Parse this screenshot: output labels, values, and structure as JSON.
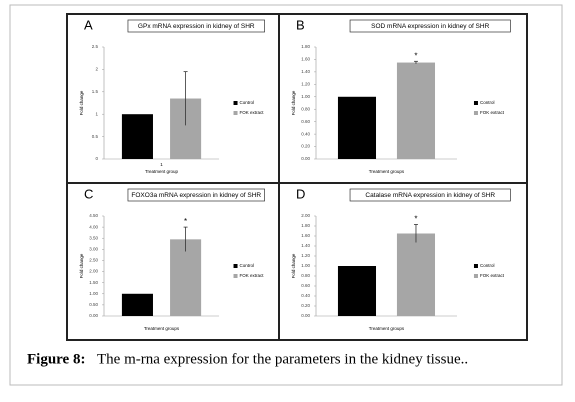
{
  "chart_data": [
    {
      "type": "bar",
      "panel_label": "A",
      "title": "GPx mRNA expression in kidney of SHR",
      "y_label": "Fold change",
      "x_label": "Treatment group",
      "categories": [
        "1"
      ],
      "series": [
        {
          "name": "Control",
          "color": "#000000",
          "values": [
            1.0
          ]
        },
        {
          "name": "FOK extract",
          "color": "#a6a6a6",
          "values": [
            1.35
          ],
          "errors": [
            0.6
          ]
        }
      ],
      "ylim": [
        0,
        2.5
      ],
      "yticks": [
        0,
        0.5,
        1,
        1.5,
        2,
        2.5
      ]
    },
    {
      "type": "bar",
      "panel_label": "B",
      "title": "SOD mRNA expression in kidney of SHR",
      "y_label": "Fold change",
      "x_label": "Treatment groups",
      "annotation": "*",
      "categories": [
        null
      ],
      "series": [
        {
          "name": "Control",
          "color": "#000000",
          "values": [
            1.0
          ]
        },
        {
          "name": "FOK extract",
          "color": "#a6a6a6",
          "values": [
            1.55
          ],
          "errors": [
            0.02
          ]
        }
      ],
      "ylim": [
        0,
        1.8
      ],
      "yticks": [
        {
          "value": 0,
          "label": "0.00"
        },
        {
          "value": 0.2,
          "label": "0.20"
        },
        {
          "value": 0.4,
          "label": "0.40"
        },
        {
          "value": 0.6,
          "label": "0.60"
        },
        {
          "value": 0.8,
          "label": "0.80"
        },
        {
          "value": 1,
          "label": "1.00"
        },
        {
          "value": 1.2,
          "label": "1.20"
        },
        {
          "value": 1.4,
          "label": "1.40"
        },
        {
          "value": 1.6,
          "label": "1.60"
        },
        {
          "value": 1.8,
          "label": "1.80"
        }
      ]
    },
    {
      "type": "bar",
      "panel_label": "C",
      "title": "FOXO3a mRNA expression in kidney of SHR",
      "y_label": "Fold change",
      "x_label": "Treatment groups",
      "annotation": "*",
      "categories": [
        null
      ],
      "series": [
        {
          "name": "Control",
          "color": "#000000",
          "values": [
            1.0
          ]
        },
        {
          "name": "FOK extract",
          "color": "#a6a6a6",
          "values": [
            3.45
          ],
          "errors": [
            0.55
          ]
        }
      ],
      "ylim": [
        0,
        4.5
      ],
      "yticks": [
        {
          "value": 0,
          "label": "0.00"
        },
        {
          "value": 0.5,
          "label": "0.50"
        },
        {
          "value": 1,
          "label": "1.00"
        },
        {
          "value": 1.5,
          "label": "1.50"
        },
        {
          "value": 2,
          "label": "2.00"
        },
        {
          "value": 2.5,
          "label": "2.50"
        },
        {
          "value": 3,
          "label": "3.00"
        },
        {
          "value": 3.5,
          "label": "3.50"
        },
        {
          "value": 4,
          "label": "4.00"
        },
        {
          "value": 4.5,
          "label": "4.50"
        }
      ]
    },
    {
      "type": "bar",
      "panel_label": "D",
      "title": "Catalase mRNA expression in kidney of SHR",
      "y_label": "Fold change",
      "x_label": "Treatment groups",
      "annotation": "*",
      "categories": [
        null
      ],
      "series": [
        {
          "name": "Control",
          "color": "#000000",
          "values": [
            1.0
          ]
        },
        {
          "name": "FOK extract",
          "color": "#a6a6a6",
          "values": [
            1.65
          ],
          "errors": [
            0.18
          ]
        }
      ],
      "ylim": [
        0,
        2.0
      ],
      "yticks": [
        {
          "value": 0,
          "label": "0.00"
        },
        {
          "value": 0.2,
          "label": "0.20"
        },
        {
          "value": 0.4,
          "label": "0.40"
        },
        {
          "value": 0.6,
          "label": "0.60"
        },
        {
          "value": 0.8,
          "label": "0.80"
        },
        {
          "value": 1,
          "label": "1.00"
        },
        {
          "value": 1.2,
          "label": "1.20"
        },
        {
          "value": 1.4,
          "label": "1.40"
        },
        {
          "value": 1.6,
          "label": "1.60"
        },
        {
          "value": 1.8,
          "label": "1.80"
        },
        {
          "value": 2,
          "label": "2.00"
        }
      ]
    }
  ],
  "caption": {
    "label": "Figure 8:",
    "text": "The m-rna expression for the parameters in the kidney tissue.."
  }
}
